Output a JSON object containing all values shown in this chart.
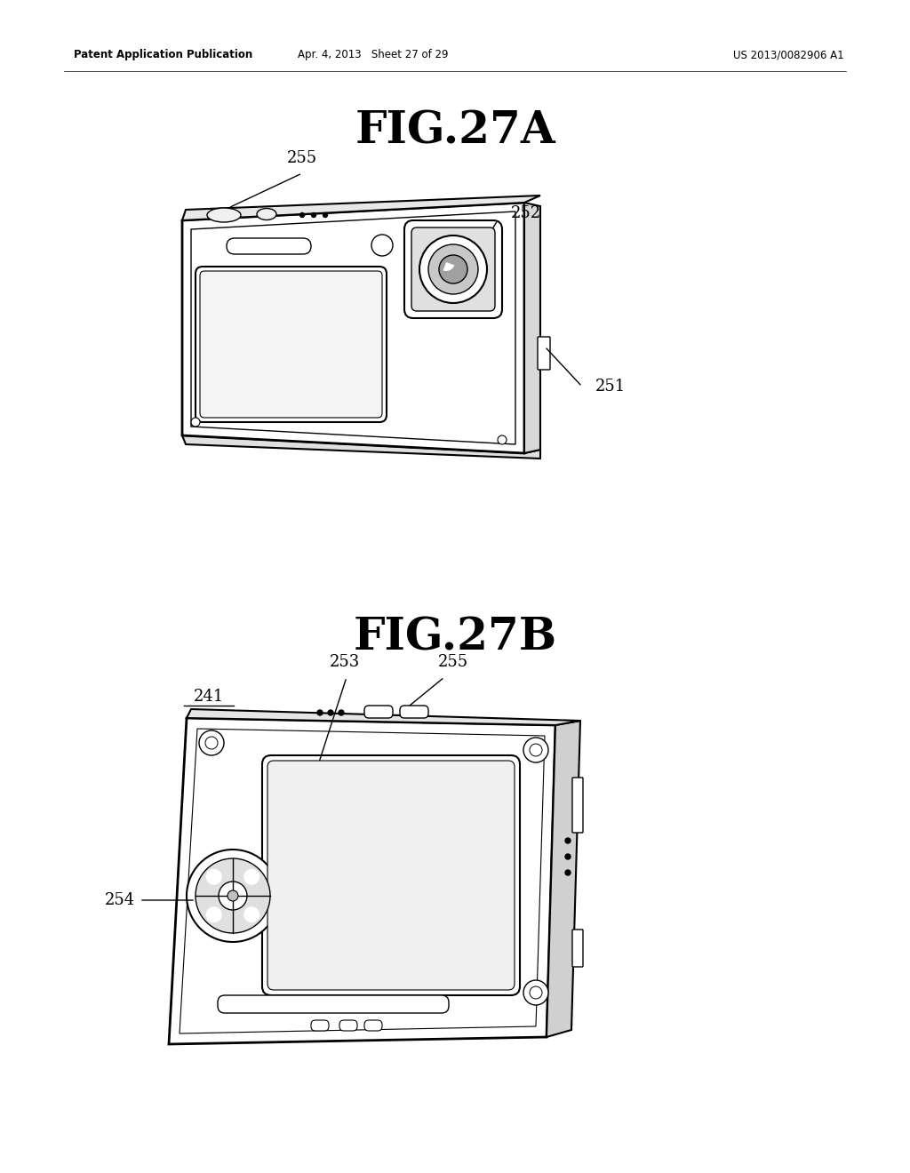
{
  "background_color": "#ffffff",
  "header_left": "Patent Application Publication",
  "header_mid": "Apr. 4, 2013   Sheet 27 of 29",
  "header_right": "US 2013/0082906 A1",
  "fig_a_title": "FIG.27A",
  "fig_b_title": "FIG.27B",
  "label_251": "251",
  "label_252": "252",
  "label_255_a": "255",
  "label_253": "253",
  "label_254": "254",
  "label_255_b": "255",
  "label_241": "241"
}
